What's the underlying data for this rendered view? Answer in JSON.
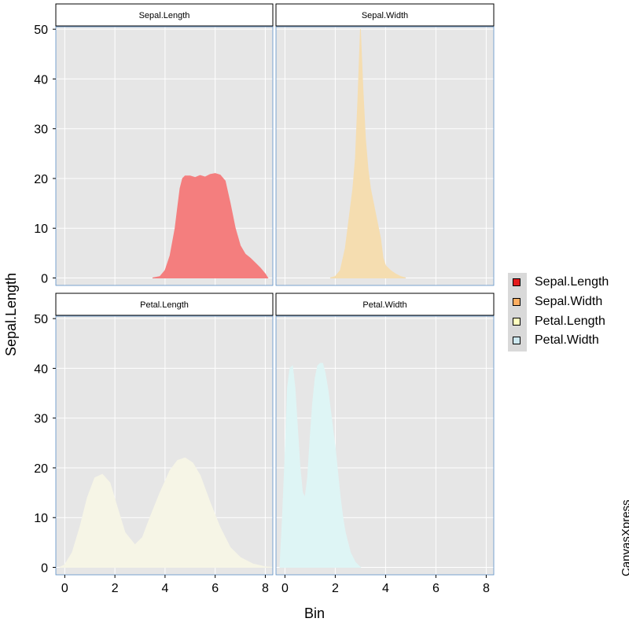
{
  "chart_data": {
    "type": "area",
    "layout": "2x2 facets",
    "xlabel": "Bin",
    "ylabel": "Sepal.Length",
    "xlim": [
      -0.2,
      8.3
    ],
    "ylim": [
      -1.5,
      50.5
    ],
    "x_ticks": [
      0,
      2,
      4,
      6,
      8
    ],
    "y_ticks": [
      0,
      10,
      20,
      30,
      40,
      50
    ],
    "grid": true,
    "legend_placement": "right",
    "legend": [
      "Sepal.Length",
      "Sepal.Width",
      "Petal.Length",
      "Petal.Width"
    ],
    "watermark": "CanvasXpress",
    "series": [
      {
        "name": "Sepal.Length",
        "panel_title": "Sepal.Length",
        "color": "#f47e7e",
        "swatch": "#e41a1c",
        "x": [
          3.5,
          3.8,
          4.0,
          4.2,
          4.4,
          4.5,
          4.6,
          4.7,
          4.8,
          5.0,
          5.2,
          5.4,
          5.6,
          5.8,
          6.0,
          6.2,
          6.4,
          6.6,
          6.8,
          7.0,
          7.2,
          7.4,
          7.6,
          7.8,
          8.0,
          8.1
        ],
        "y": [
          0,
          0.3,
          1.5,
          4.5,
          10,
          14,
          18,
          20,
          20.5,
          20.5,
          20.2,
          20.6,
          20.3,
          20.8,
          21,
          20.7,
          19.5,
          15,
          10,
          6.5,
          4.8,
          4,
          3,
          2,
          0.8,
          0
        ]
      },
      {
        "name": "Sepal.Width",
        "panel_title": "Sepal.Width",
        "color": "#f5ddb0",
        "swatch": "#fdae61",
        "x": [
          1.8,
          2.0,
          2.2,
          2.4,
          2.5,
          2.6,
          2.7,
          2.8,
          2.9,
          3.0,
          3.1,
          3.2,
          3.3,
          3.4,
          3.6,
          3.8,
          3.9,
          4.0,
          4.2,
          4.4,
          4.6,
          4.8
        ],
        "y": [
          0,
          0.3,
          1.5,
          6,
          10,
          14,
          18,
          24,
          36,
          50,
          38,
          28,
          22,
          18,
          13,
          8,
          4,
          2.5,
          1.5,
          0.8,
          0.3,
          0
        ]
      },
      {
        "name": "Petal.Length",
        "panel_title": "Petal.Length",
        "color": "#f6f5e6",
        "swatch": "#ffffbf",
        "x": [
          -0.2,
          0.0,
          0.3,
          0.6,
          0.9,
          1.2,
          1.5,
          1.8,
          2.1,
          2.4,
          2.8,
          3.1,
          3.4,
          3.8,
          4.2,
          4.5,
          4.8,
          5.1,
          5.4,
          5.8,
          6.2,
          6.6,
          7.0,
          7.5,
          8.0,
          8.3
        ],
        "y": [
          0,
          0.5,
          3,
          8,
          14,
          18,
          18.7,
          17,
          12,
          7,
          4.5,
          6,
          10,
          15,
          19.5,
          21.5,
          22,
          21,
          18.5,
          13,
          8,
          4,
          2,
          0.7,
          0.1,
          0
        ]
      },
      {
        "name": "Petal.Width",
        "panel_title": "Petal.Width",
        "color": "#def5f5",
        "swatch": "#cde8f0",
        "x": [
          -0.2,
          -0.1,
          0.0,
          0.1,
          0.2,
          0.3,
          0.4,
          0.5,
          0.6,
          0.7,
          0.8,
          0.9,
          1.0,
          1.1,
          1.2,
          1.3,
          1.4,
          1.5,
          1.6,
          1.7,
          1.8,
          1.9,
          2.0,
          2.1,
          2.2,
          2.3,
          2.4,
          2.5,
          2.6,
          2.8,
          3.0
        ],
        "y": [
          0,
          10,
          22,
          36,
          40,
          40.5,
          36,
          28,
          20,
          15,
          14,
          18,
          26,
          33,
          38,
          40.5,
          41,
          41,
          39,
          36,
          32,
          28,
          24,
          19,
          14,
          10,
          7,
          5,
          3,
          1,
          0
        ]
      }
    ]
  }
}
